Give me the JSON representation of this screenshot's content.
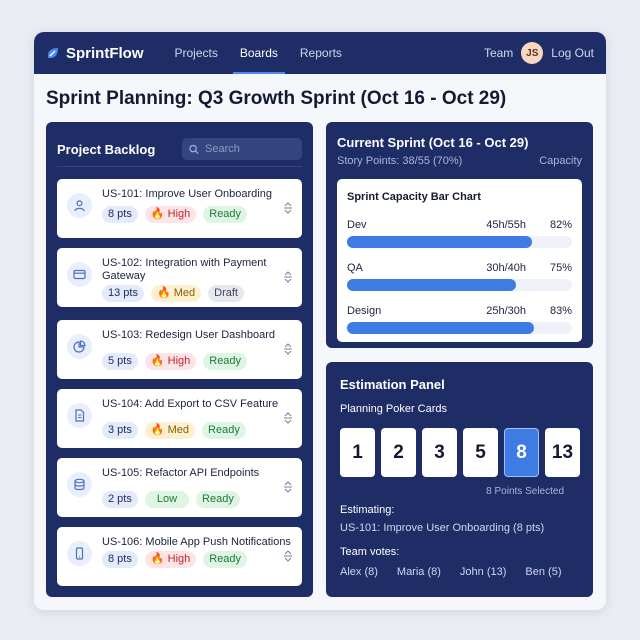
{
  "app": {
    "name": "SprintFlow"
  },
  "nav": {
    "tabs": [
      {
        "label": "Projects",
        "active": false
      },
      {
        "label": "Boards",
        "active": true
      },
      {
        "label": "Reports",
        "active": false
      }
    ],
    "team_label": "Team",
    "avatar_initials": "JS",
    "logout_label": "Log Out"
  },
  "page": {
    "title": "Sprint Planning: Q3 Growth Sprint (Oct 16 - Oct 29)"
  },
  "backlog": {
    "title": "Project Backlog",
    "search_placeholder": "Search",
    "items": [
      {
        "title": "US-101: Improve User Onboarding",
        "points": "8 pts",
        "priority": "High",
        "priority_level": "high",
        "status": "Ready",
        "status_level": "ready",
        "icon": "user-icon"
      },
      {
        "title": "US-102: Integration with Payment Gateway",
        "points": "13 pts",
        "priority": "Med",
        "priority_level": "med",
        "status": "Draft",
        "status_level": "draft",
        "icon": "credit-card-icon"
      },
      {
        "title": "US-103: Redesign User Dashboard",
        "points": "5 pts",
        "priority": "High",
        "priority_level": "high",
        "status": "Ready",
        "status_level": "ready",
        "icon": "pie-chart-icon"
      },
      {
        "title": "US-104: Add Export to CSV Feature",
        "points": "3 pts",
        "priority": "Med",
        "priority_level": "med",
        "status": "Ready",
        "status_level": "ready",
        "icon": "document-icon"
      },
      {
        "title": "US-105: Refactor API Endpoints",
        "points": "2 pts",
        "priority": "Low",
        "priority_level": "low",
        "status": "Ready",
        "status_level": "ready",
        "icon": "database-icon"
      },
      {
        "title": "US-106: Mobile App Push Notifications",
        "points": "8 pts",
        "priority": "High",
        "priority_level": "high",
        "status": "Ready",
        "status_level": "ready",
        "icon": "mobile-icon"
      }
    ]
  },
  "sprint": {
    "title": "Current Sprint (Oct 16 - Oct 29)",
    "story_points": "Story Points: 38/55 (70%)",
    "capacity_label": "Capacity",
    "chart_title": "Sprint Capacity Bar Chart",
    "rows": [
      {
        "name": "Dev",
        "hours": "45h/55h",
        "percent": "82%",
        "fill": 0.82
      },
      {
        "name": "QA",
        "hours": "30h/40h",
        "percent": "75%",
        "fill": 0.75
      },
      {
        "name": "Design",
        "hours": "25h/30h",
        "percent": "83%",
        "fill": 0.83
      }
    ]
  },
  "estimation": {
    "title": "Estimation Panel",
    "cards_label": "Planning Poker Cards",
    "cards": [
      {
        "value": "1",
        "selected": false
      },
      {
        "value": "2",
        "selected": false
      },
      {
        "value": "3",
        "selected": false
      },
      {
        "value": "5",
        "selected": false
      },
      {
        "value": "8",
        "selected": true
      },
      {
        "value": "13",
        "selected": false
      }
    ],
    "selected_text": "8 Points Selected",
    "estimating_label": "Estimating:",
    "estimating_story": "US-101: Improve User Onboarding (8 pts)",
    "votes_label": "Team votes:",
    "votes": [
      "Alex (8)",
      "Maria (8)",
      "John (13)",
      "Ben (5)"
    ]
  },
  "colors": {
    "navy": "#1f2d66",
    "accent": "#3e7be3",
    "high": "#c0262d",
    "med": "#8a5b00",
    "ready": "#1d7a3b"
  }
}
